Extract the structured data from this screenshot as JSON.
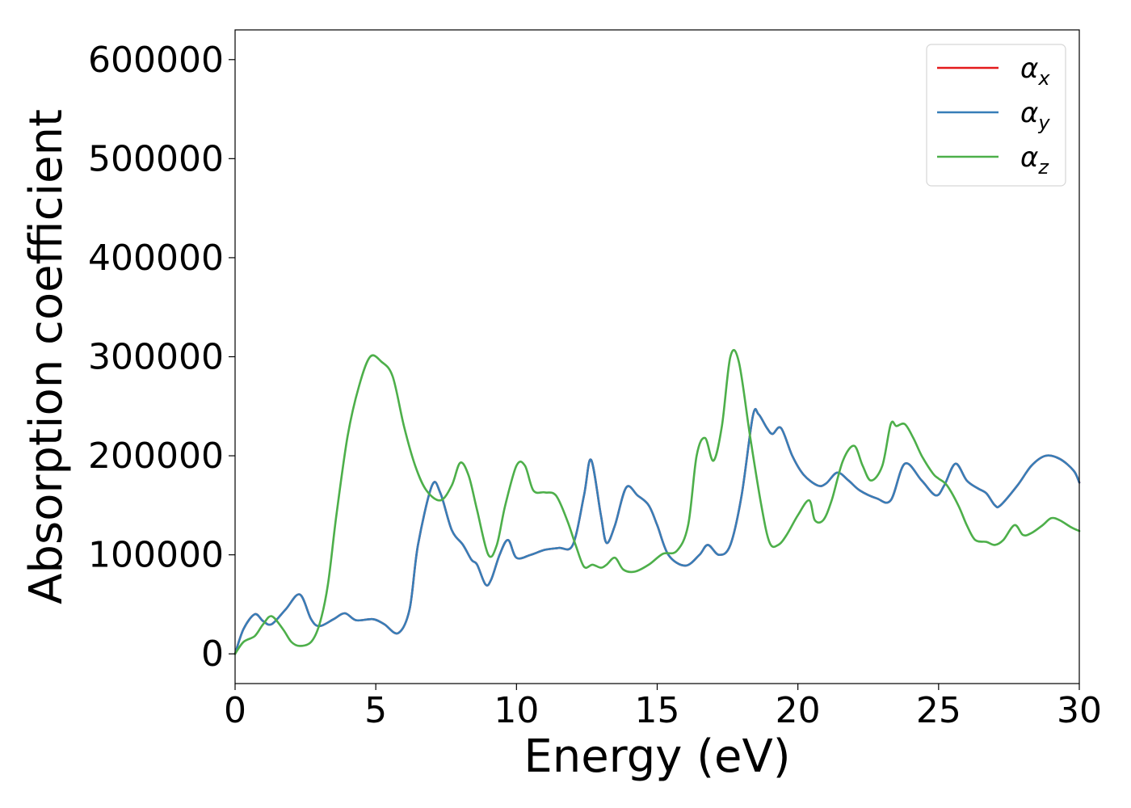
{
  "chart_data": {
    "type": "line",
    "xlabel": "Energy (eV)",
    "ylabel": "Absorption coefficient",
    "xlim": [
      0,
      30
    ],
    "ylim": [
      -30000,
      630000
    ],
    "xticks": [
      0,
      5,
      10,
      15,
      20,
      25,
      30
    ],
    "xtick_labels": [
      "0",
      "5",
      "10",
      "15",
      "20",
      "25",
      "30"
    ],
    "yticks": [
      0,
      100000,
      200000,
      300000,
      400000,
      500000,
      600000
    ],
    "ytick_labels": [
      "0",
      "100000",
      "200000",
      "300000",
      "400000",
      "500000",
      "600000"
    ],
    "grid": false,
    "legend_position": "top-right",
    "series": [
      {
        "name": "α_x",
        "base": "α",
        "sub": "x",
        "color": "#e41a1c",
        "x": [
          0,
          0.3,
          0.7,
          1.0,
          1.3,
          1.8,
          2.3,
          2.7,
          3.0,
          3.5,
          3.9,
          4.3,
          4.9,
          5.3,
          5.8,
          6.2,
          6.5,
          7.0,
          7.3,
          7.7,
          8.1,
          8.4,
          8.6,
          8.9,
          9.1,
          9.4,
          9.7,
          10.0,
          10.5,
          11.0,
          11.5,
          12.0,
          12.4,
          12.65,
          13.0,
          13.2,
          13.5,
          13.9,
          14.3,
          14.7,
          15.0,
          15.4,
          16.0,
          16.5,
          16.8,
          17.2,
          17.6,
          18.0,
          18.4,
          18.6,
          18.9,
          19.1,
          19.4,
          19.8,
          20.2,
          20.7,
          21.0,
          21.4,
          21.8,
          22.2,
          22.8,
          23.3,
          23.8,
          24.4,
          24.9,
          25.2,
          25.6,
          26.0,
          26.4,
          26.7,
          27.0,
          27.2,
          27.8,
          28.3,
          28.8,
          29.3,
          29.8,
          30.0
        ],
        "y": [
          0,
          25000,
          40000,
          33000,
          30000,
          45000,
          60000,
          35000,
          28000,
          35000,
          41000,
          34000,
          35000,
          30000,
          21000,
          45000,
          110000,
          170000,
          162000,
          125000,
          110000,
          95000,
          90000,
          70000,
          75000,
          100000,
          115000,
          97000,
          100000,
          105000,
          107000,
          110000,
          160000,
          196000,
          140000,
          112000,
          130000,
          168000,
          160000,
          150000,
          130000,
          100000,
          89000,
          100000,
          110000,
          100000,
          110000,
          160000,
          240000,
          242000,
          228000,
          222000,
          228000,
          200000,
          181000,
          170000,
          172000,
          183000,
          175000,
          165000,
          157000,
          155000,
          192000,
          175000,
          160000,
          170000,
          192000,
          175000,
          167000,
          162000,
          150000,
          150000,
          170000,
          190000,
          200000,
          197000,
          185000,
          173000
        ]
      },
      {
        "name": "α_y",
        "base": "α",
        "sub": "y",
        "color": "#377eb8",
        "x": [
          0,
          0.3,
          0.7,
          1.0,
          1.3,
          1.8,
          2.3,
          2.7,
          3.0,
          3.5,
          3.9,
          4.3,
          4.9,
          5.3,
          5.8,
          6.2,
          6.5,
          7.0,
          7.3,
          7.7,
          8.1,
          8.4,
          8.6,
          8.9,
          9.1,
          9.4,
          9.7,
          10.0,
          10.5,
          11.0,
          11.5,
          12.0,
          12.4,
          12.65,
          13.0,
          13.2,
          13.5,
          13.9,
          14.3,
          14.7,
          15.0,
          15.4,
          16.0,
          16.5,
          16.8,
          17.2,
          17.6,
          18.0,
          18.4,
          18.6,
          18.9,
          19.1,
          19.4,
          19.8,
          20.2,
          20.7,
          21.0,
          21.4,
          21.8,
          22.2,
          22.8,
          23.3,
          23.8,
          24.4,
          24.9,
          25.2,
          25.6,
          26.0,
          26.4,
          26.7,
          27.0,
          27.2,
          27.8,
          28.3,
          28.8,
          29.3,
          29.8,
          30.0
        ],
        "y": [
          0,
          25000,
          40000,
          33000,
          30000,
          45000,
          60000,
          35000,
          28000,
          35000,
          41000,
          34000,
          35000,
          30000,
          21000,
          45000,
          110000,
          170000,
          162000,
          125000,
          110000,
          95000,
          90000,
          70000,
          75000,
          100000,
          115000,
          97000,
          100000,
          105000,
          107000,
          110000,
          160000,
          196000,
          140000,
          112000,
          130000,
          168000,
          160000,
          150000,
          130000,
          100000,
          89000,
          100000,
          110000,
          100000,
          110000,
          160000,
          240000,
          242000,
          228000,
          222000,
          228000,
          200000,
          181000,
          170000,
          172000,
          183000,
          175000,
          165000,
          157000,
          155000,
          192000,
          175000,
          160000,
          170000,
          192000,
          175000,
          167000,
          162000,
          150000,
          150000,
          170000,
          190000,
          200000,
          197000,
          185000,
          173000
        ]
      },
      {
        "name": "α_z",
        "base": "α",
        "sub": "z",
        "color": "#4daf4a",
        "x": [
          0,
          0.3,
          0.7,
          1.0,
          1.3,
          1.7,
          2.0,
          2.3,
          2.7,
          3.0,
          3.3,
          3.6,
          4.0,
          4.4,
          4.8,
          5.2,
          5.6,
          6.0,
          6.4,
          6.8,
          7.3,
          7.7,
          8.0,
          8.3,
          8.6,
          9.0,
          9.3,
          9.6,
          10.0,
          10.3,
          10.6,
          11.0,
          11.4,
          11.8,
          12.1,
          12.4,
          12.7,
          13.0,
          13.2,
          13.5,
          13.8,
          14.2,
          14.7,
          15.2,
          15.7,
          16.1,
          16.4,
          16.7,
          17.0,
          17.3,
          17.6,
          17.9,
          18.3,
          18.7,
          19.0,
          19.3,
          19.6,
          20.0,
          20.4,
          20.6,
          20.9,
          21.2,
          21.6,
          22.0,
          22.3,
          22.6,
          23.0,
          23.3,
          23.5,
          23.8,
          24.1,
          24.4,
          24.8,
          25.0,
          25.3,
          25.7,
          26.0,
          26.3,
          26.7,
          27.0,
          27.3,
          27.7,
          28.0,
          28.3,
          28.7,
          29.0,
          29.3,
          29.7,
          30.0
        ],
        "y": [
          0,
          12000,
          18000,
          30000,
          38000,
          25000,
          12000,
          8000,
          12000,
          30000,
          70000,
          140000,
          220000,
          270000,
          300000,
          295000,
          280000,
          230000,
          190000,
          165000,
          155000,
          170000,
          193000,
          180000,
          145000,
          100000,
          110000,
          150000,
          190000,
          190000,
          165000,
          163000,
          160000,
          135000,
          110000,
          88000,
          90000,
          87000,
          90000,
          97000,
          85000,
          83000,
          90000,
          101000,
          104000,
          130000,
          200000,
          218000,
          195000,
          230000,
          300000,
          295000,
          220000,
          150000,
          112000,
          110000,
          120000,
          140000,
          155000,
          135000,
          135000,
          155000,
          195000,
          210000,
          190000,
          175000,
          190000,
          232000,
          230000,
          232000,
          218000,
          200000,
          182000,
          177000,
          170000,
          150000,
          130000,
          115000,
          113000,
          110000,
          115000,
          130000,
          120000,
          122000,
          130000,
          137000,
          135000,
          128000,
          124000
        ]
      }
    ]
  }
}
